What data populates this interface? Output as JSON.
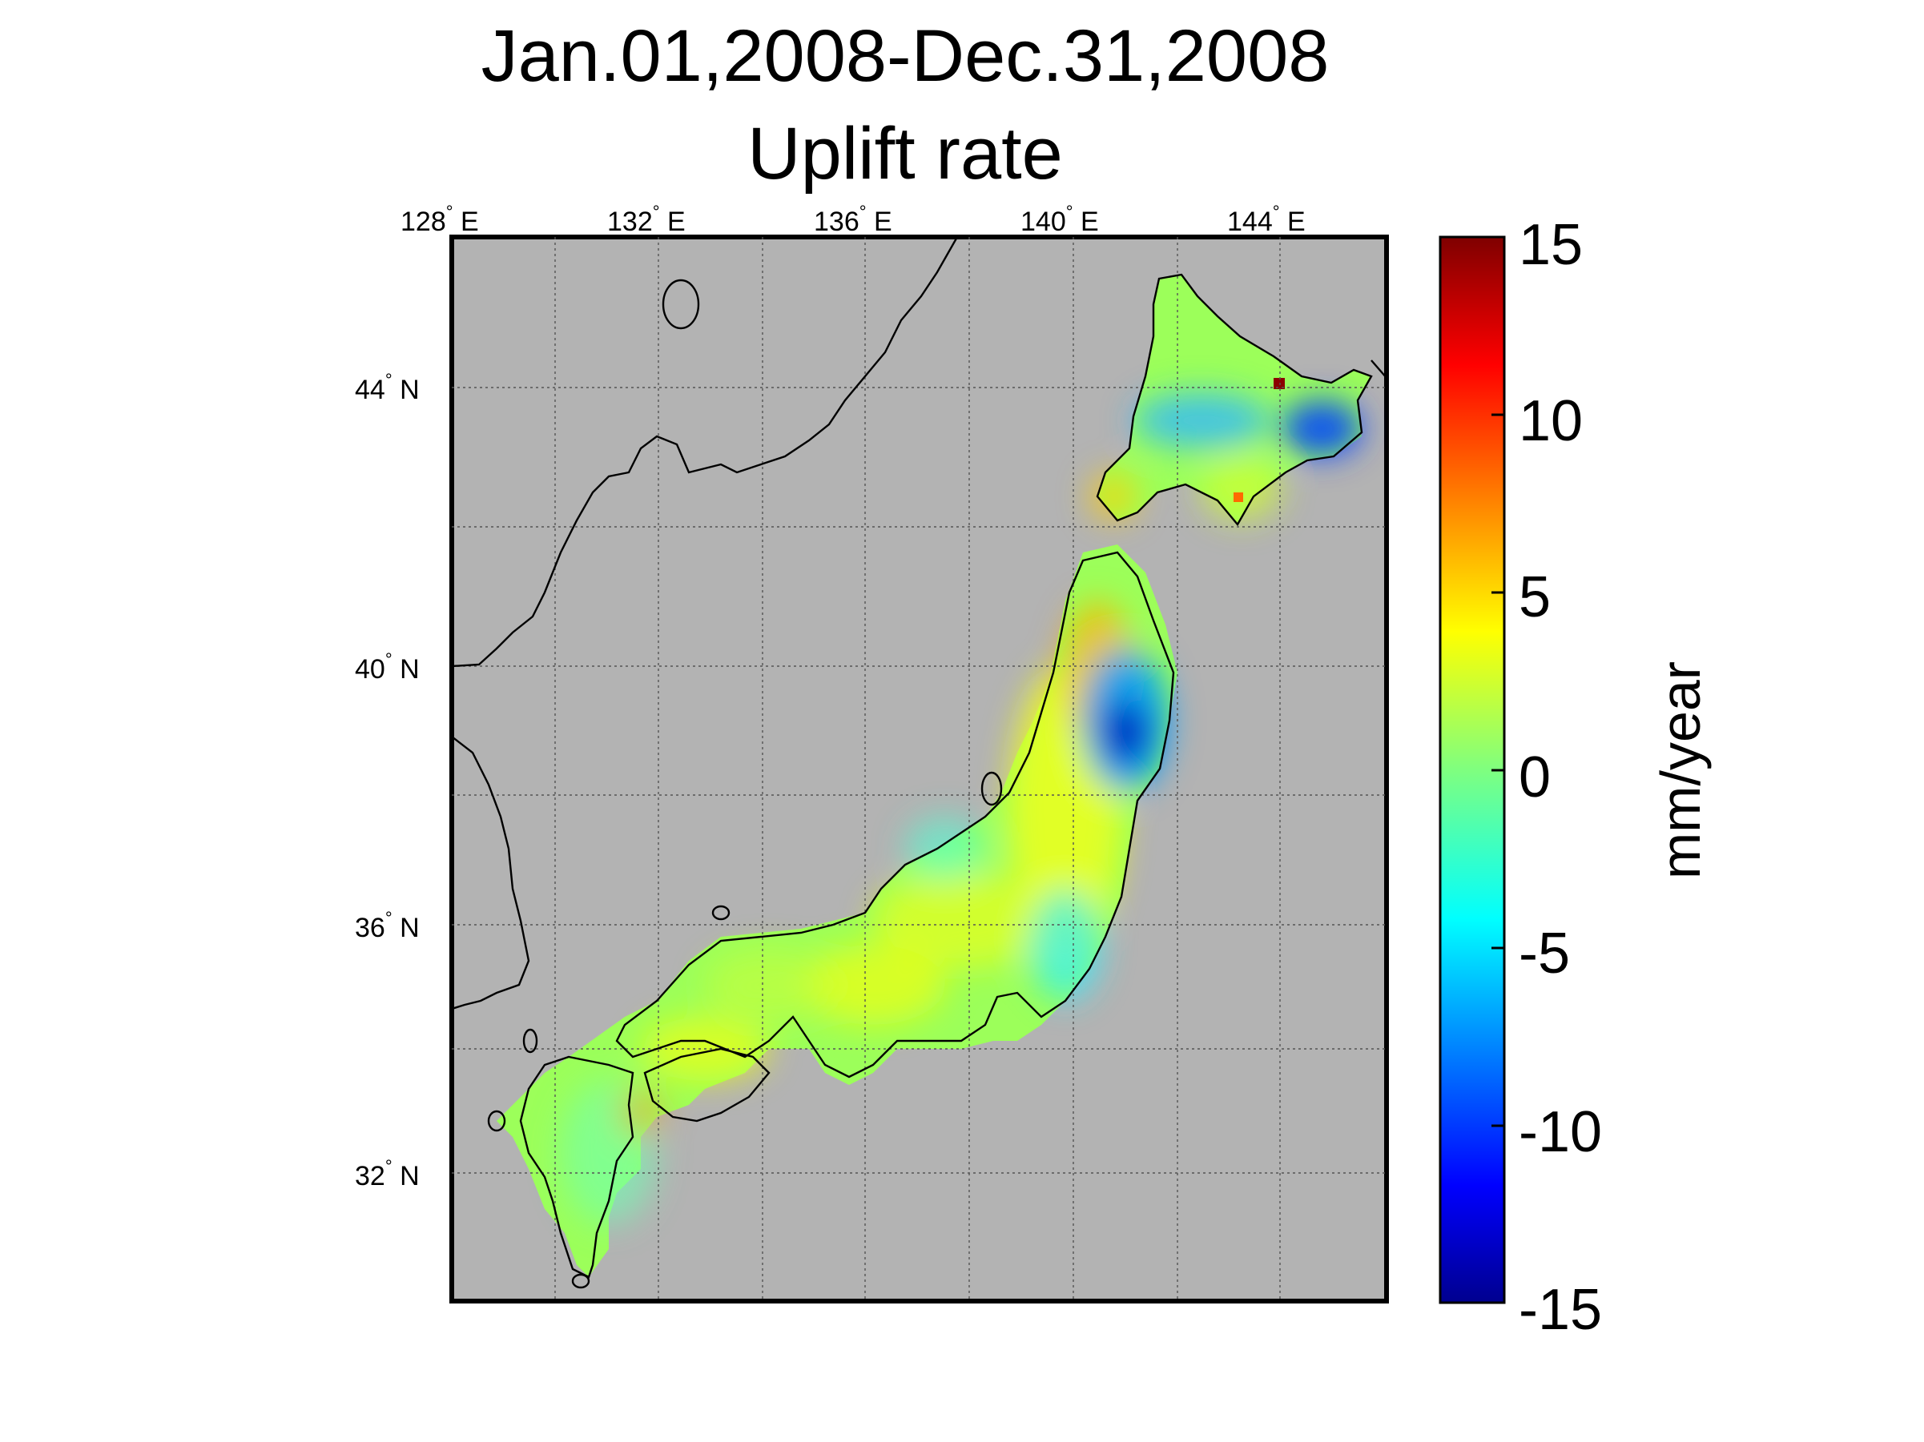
{
  "title": {
    "line1": "Jan.01,2008-Dec.31,2008",
    "line2": "Uplift rate"
  },
  "axes": {
    "lon_ticks": [
      "128",
      "132",
      "136",
      "140",
      "144"
    ],
    "lon_suffix": "E",
    "lat_ticks": [
      "44",
      "40",
      "36",
      "32"
    ],
    "lat_suffix": "N",
    "degree_symbol": "°"
  },
  "colorbar": {
    "label": "mm/year",
    "ticks": [
      "15",
      "10",
      "5",
      "0",
      "-5",
      "-10",
      "-15"
    ],
    "range": [
      -15,
      15
    ],
    "colormap": "jet"
  },
  "colors": {
    "ocean": "#b3b3b3",
    "coast": "#000000",
    "grid": "#555555"
  }
}
